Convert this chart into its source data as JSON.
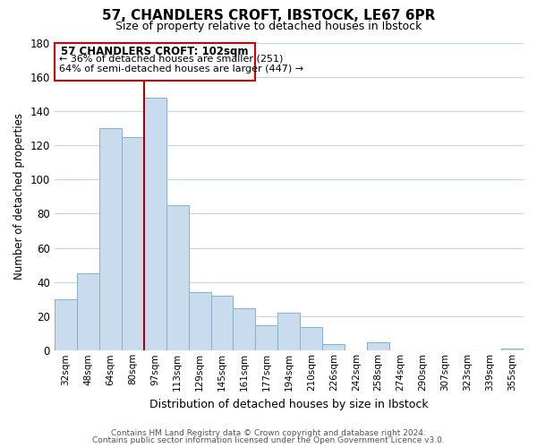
{
  "title": "57, CHANDLERS CROFT, IBSTOCK, LE67 6PR",
  "subtitle": "Size of property relative to detached houses in Ibstock",
  "xlabel": "Distribution of detached houses by size in Ibstock",
  "ylabel": "Number of detached properties",
  "bar_labels": [
    "32sqm",
    "48sqm",
    "64sqm",
    "80sqm",
    "97sqm",
    "113sqm",
    "129sqm",
    "145sqm",
    "161sqm",
    "177sqm",
    "194sqm",
    "210sqm",
    "226sqm",
    "242sqm",
    "258sqm",
    "274sqm",
    "290sqm",
    "307sqm",
    "323sqm",
    "339sqm",
    "355sqm"
  ],
  "bar_values": [
    30,
    45,
    130,
    125,
    148,
    85,
    34,
    32,
    25,
    15,
    22,
    14,
    4,
    0,
    5,
    0,
    0,
    0,
    0,
    0,
    1
  ],
  "bar_color": "#c8dcee",
  "bar_edge_color": "#8ab0cc",
  "highlight_bar_index": 4,
  "vline_x": 4,
  "vline_color": "#aa0000",
  "ylim": [
    0,
    180
  ],
  "yticks": [
    0,
    20,
    40,
    60,
    80,
    100,
    120,
    140,
    160,
    180
  ],
  "annotation_title": "57 CHANDLERS CROFT: 102sqm",
  "annotation_line1": "← 36% of detached houses are smaller (251)",
  "annotation_line2": "64% of semi-detached houses are larger (447) →",
  "annotation_box_edge": "#cc0000",
  "footer_line1": "Contains HM Land Registry data © Crown copyright and database right 2024.",
  "footer_line2": "Contains public sector information licensed under the Open Government Licence v3.0.",
  "background_color": "#ffffff",
  "grid_color": "#c8d4e0"
}
